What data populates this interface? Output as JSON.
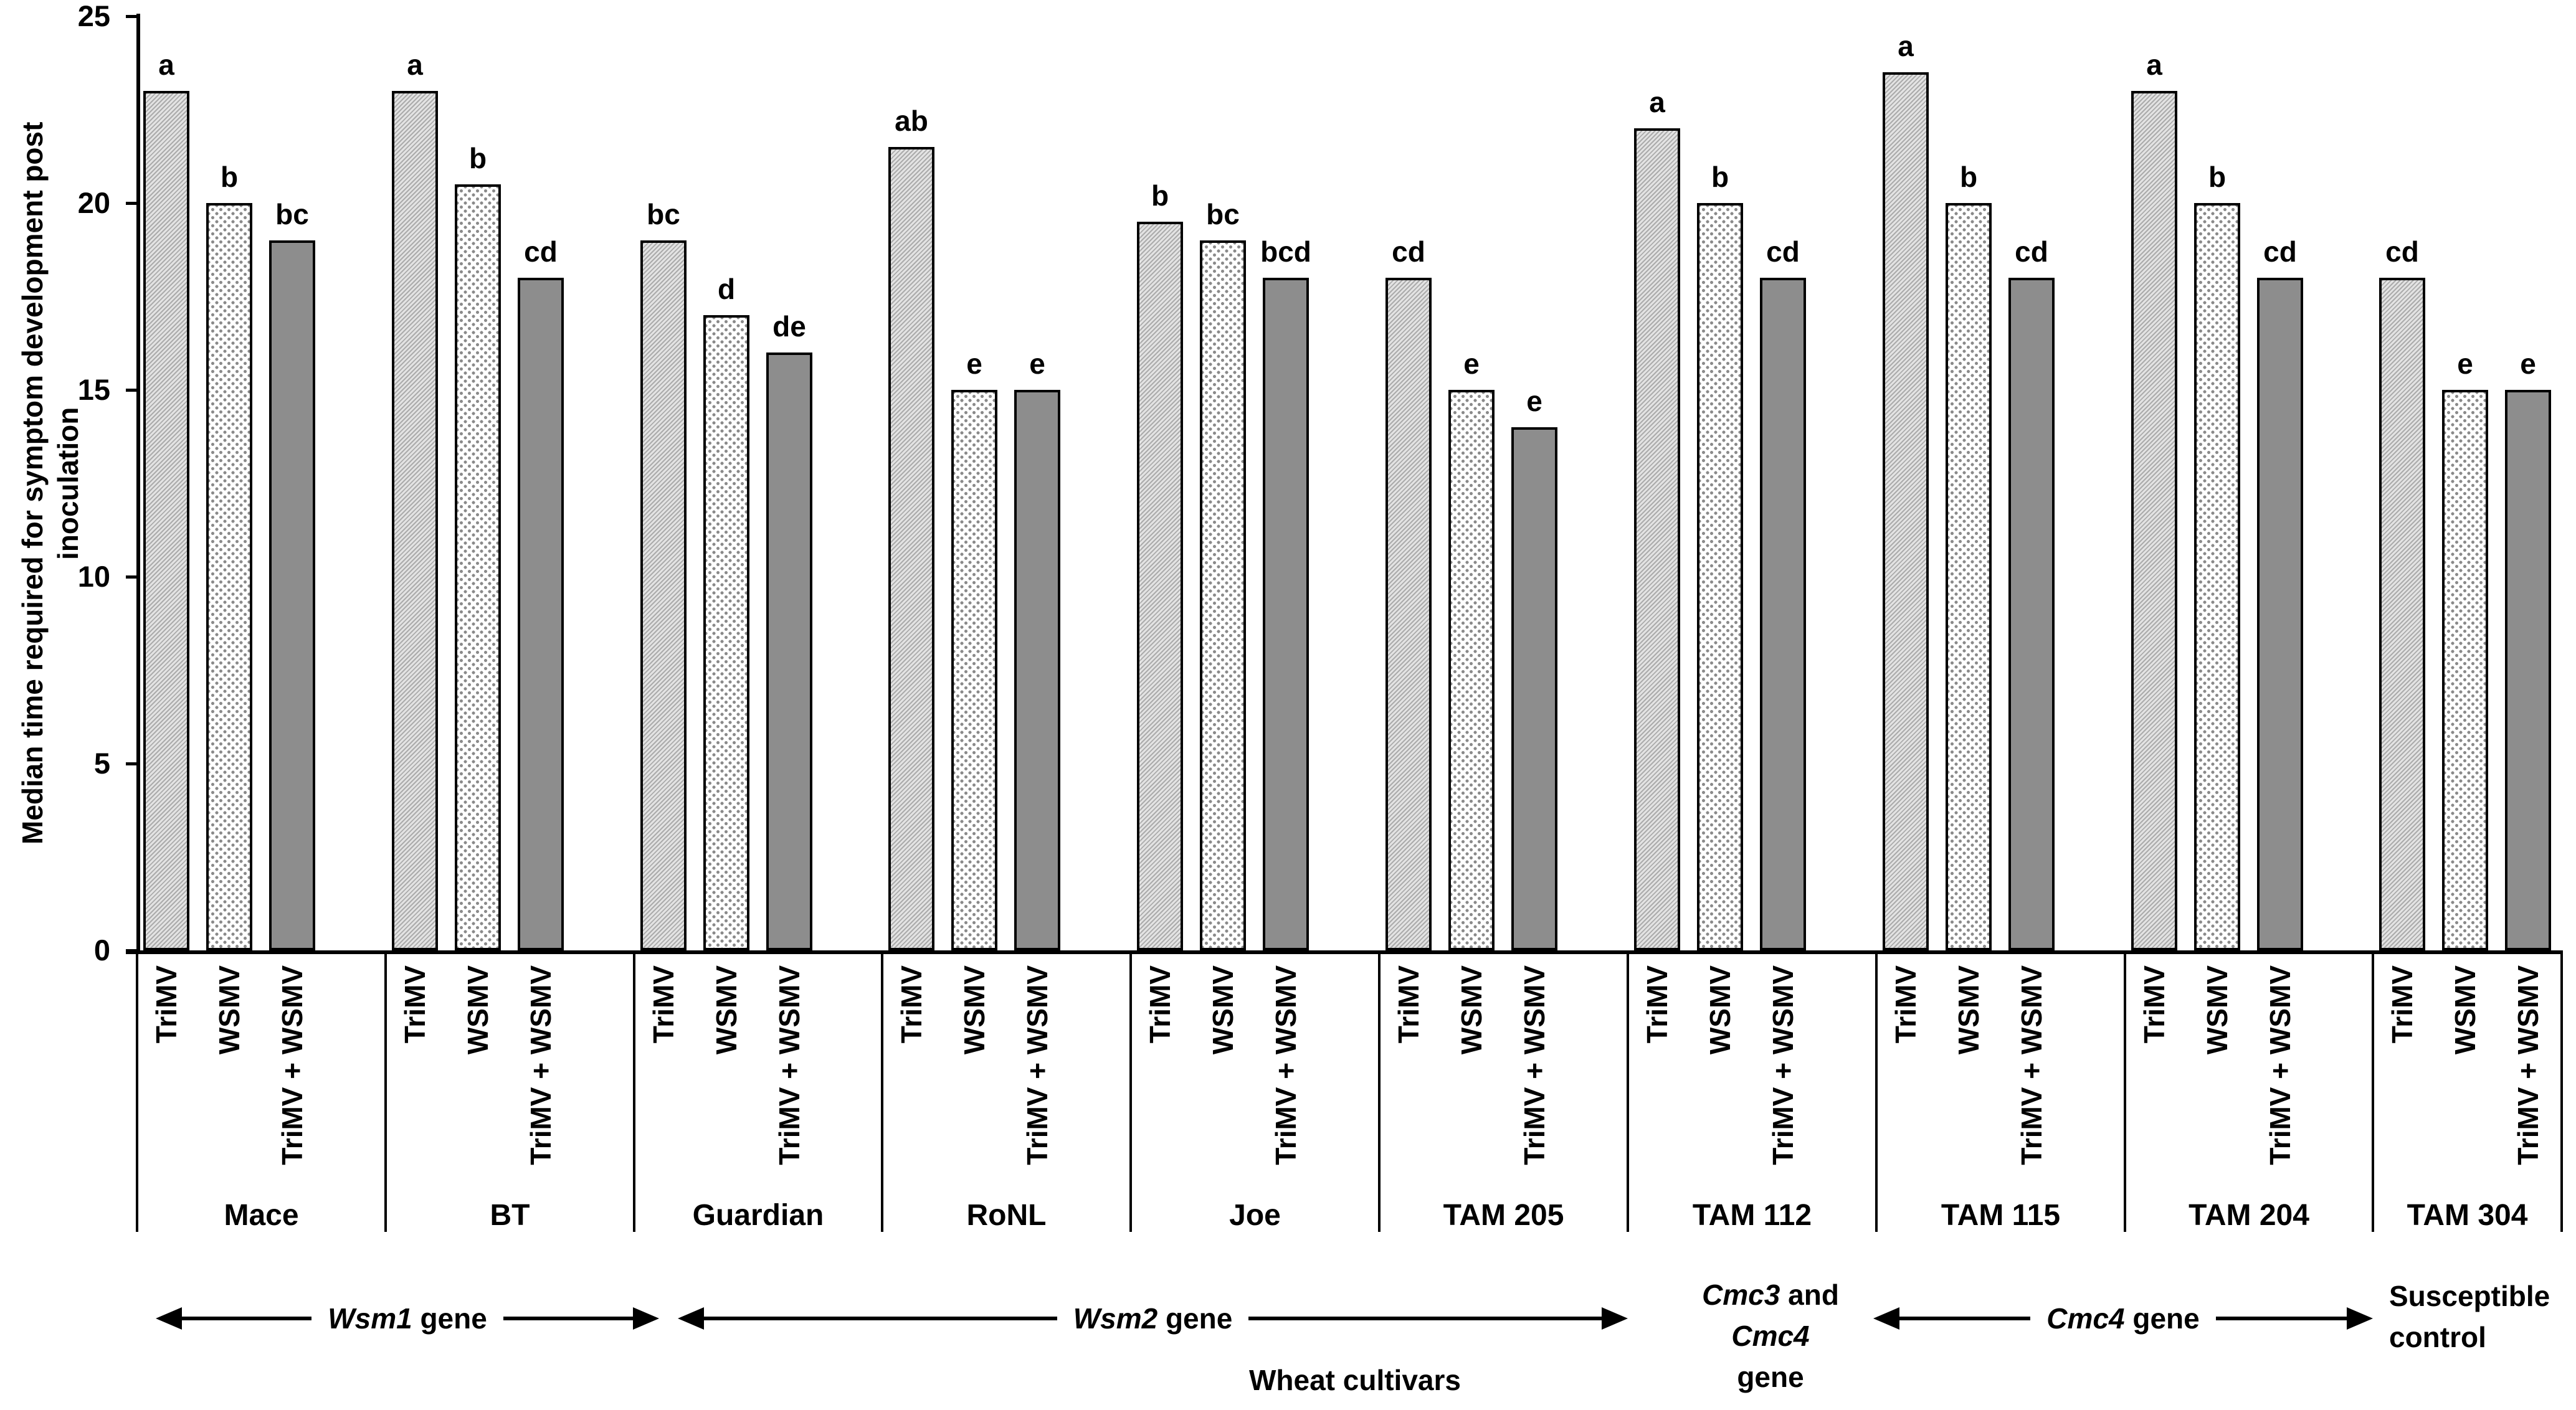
{
  "chart_data": {
    "type": "bar",
    "title": "",
    "ylabel_lines": [
      "Median time required for symptom development post",
      "inoculation"
    ],
    "xlabel": "Wheat cultivars",
    "ylim": [
      0,
      25
    ],
    "yticks": [
      0,
      5,
      10,
      15,
      20,
      25
    ],
    "grid": false,
    "legend_position": "none",
    "treatments": [
      "TriMV",
      "WSMV",
      "TriMV + WSMV"
    ],
    "treatment_patterns": [
      "diagonal-hatch",
      "dots",
      "solid-gray"
    ],
    "groups": [
      {
        "cultivar": "Mace",
        "values": [
          23,
          20,
          19
        ],
        "letters": [
          "a",
          "b",
          "bc"
        ]
      },
      {
        "cultivar": "BT",
        "values": [
          23,
          20.5,
          18
        ],
        "letters": [
          "a",
          "b",
          "cd"
        ]
      },
      {
        "cultivar": "Guardian",
        "values": [
          19,
          17,
          16
        ],
        "letters": [
          "bc",
          "d",
          "de"
        ]
      },
      {
        "cultivar": "RoNL",
        "values": [
          21.5,
          15,
          15
        ],
        "letters": [
          "ab",
          "e",
          "e"
        ]
      },
      {
        "cultivar": "Joe",
        "values": [
          19.5,
          19,
          18
        ],
        "letters": [
          "b",
          "bc",
          "bcd"
        ]
      },
      {
        "cultivar": "TAM 205",
        "values": [
          18,
          15,
          14
        ],
        "letters": [
          "cd",
          "e",
          "e"
        ]
      },
      {
        "cultivar": "TAM 112",
        "values": [
          22,
          20,
          18
        ],
        "letters": [
          "a",
          "b",
          "cd"
        ]
      },
      {
        "cultivar": "TAM 115",
        "values": [
          23.5,
          20,
          18
        ],
        "letters": [
          "a",
          "b",
          "cd"
        ]
      },
      {
        "cultivar": "TAM 204",
        "values": [
          23,
          20,
          18
        ],
        "letters": [
          "a",
          "b",
          "cd"
        ]
      },
      {
        "cultivar": "TAM 304",
        "values": [
          18,
          15,
          15
        ],
        "letters": [
          "cd",
          "e",
          "e"
        ]
      }
    ],
    "gene_annotations": [
      {
        "id": "wsm1-gene",
        "type": "arrow",
        "label": [
          {
            "t": "Wsm1",
            "it": true
          },
          {
            "t": " gene",
            "it": false
          }
        ]
      },
      {
        "id": "wsm2-gene",
        "type": "arrow",
        "label": [
          {
            "t": "Wsm2",
            "it": true
          },
          {
            "t": " gene",
            "it": false
          }
        ]
      },
      {
        "id": "cmc3-cmc4-gene",
        "type": "text",
        "lines": [
          [
            {
              "t": "Cmc3",
              "it": true
            },
            {
              "t": " and",
              "it": false
            }
          ],
          [
            {
              "t": "Cmc4",
              "it": true
            }
          ],
          [
            {
              "t": "gene",
              "it": false
            }
          ]
        ]
      },
      {
        "id": "cmc4-gene",
        "type": "arrow",
        "label": [
          {
            "t": "Cmc4",
            "it": true
          },
          {
            "t": " gene",
            "it": false
          }
        ]
      },
      {
        "id": "susceptible-control",
        "type": "text",
        "align": "left",
        "lines": [
          [
            {
              "t": "Susceptible",
              "it": false
            }
          ],
          [
            {
              "t": "control",
              "it": false
            }
          ]
        ]
      }
    ]
  },
  "styles": {
    "background": "#ffffff",
    "axis_color": "#000000",
    "text_color": "#000000",
    "hatch_line": "#ababab",
    "hatch_bg": "#e3e3e3",
    "dot_color": "#8a8a8a",
    "dot_bg": "#ffffff",
    "solid_fill": "#8d8d8d",
    "bar_border": "#000000"
  }
}
